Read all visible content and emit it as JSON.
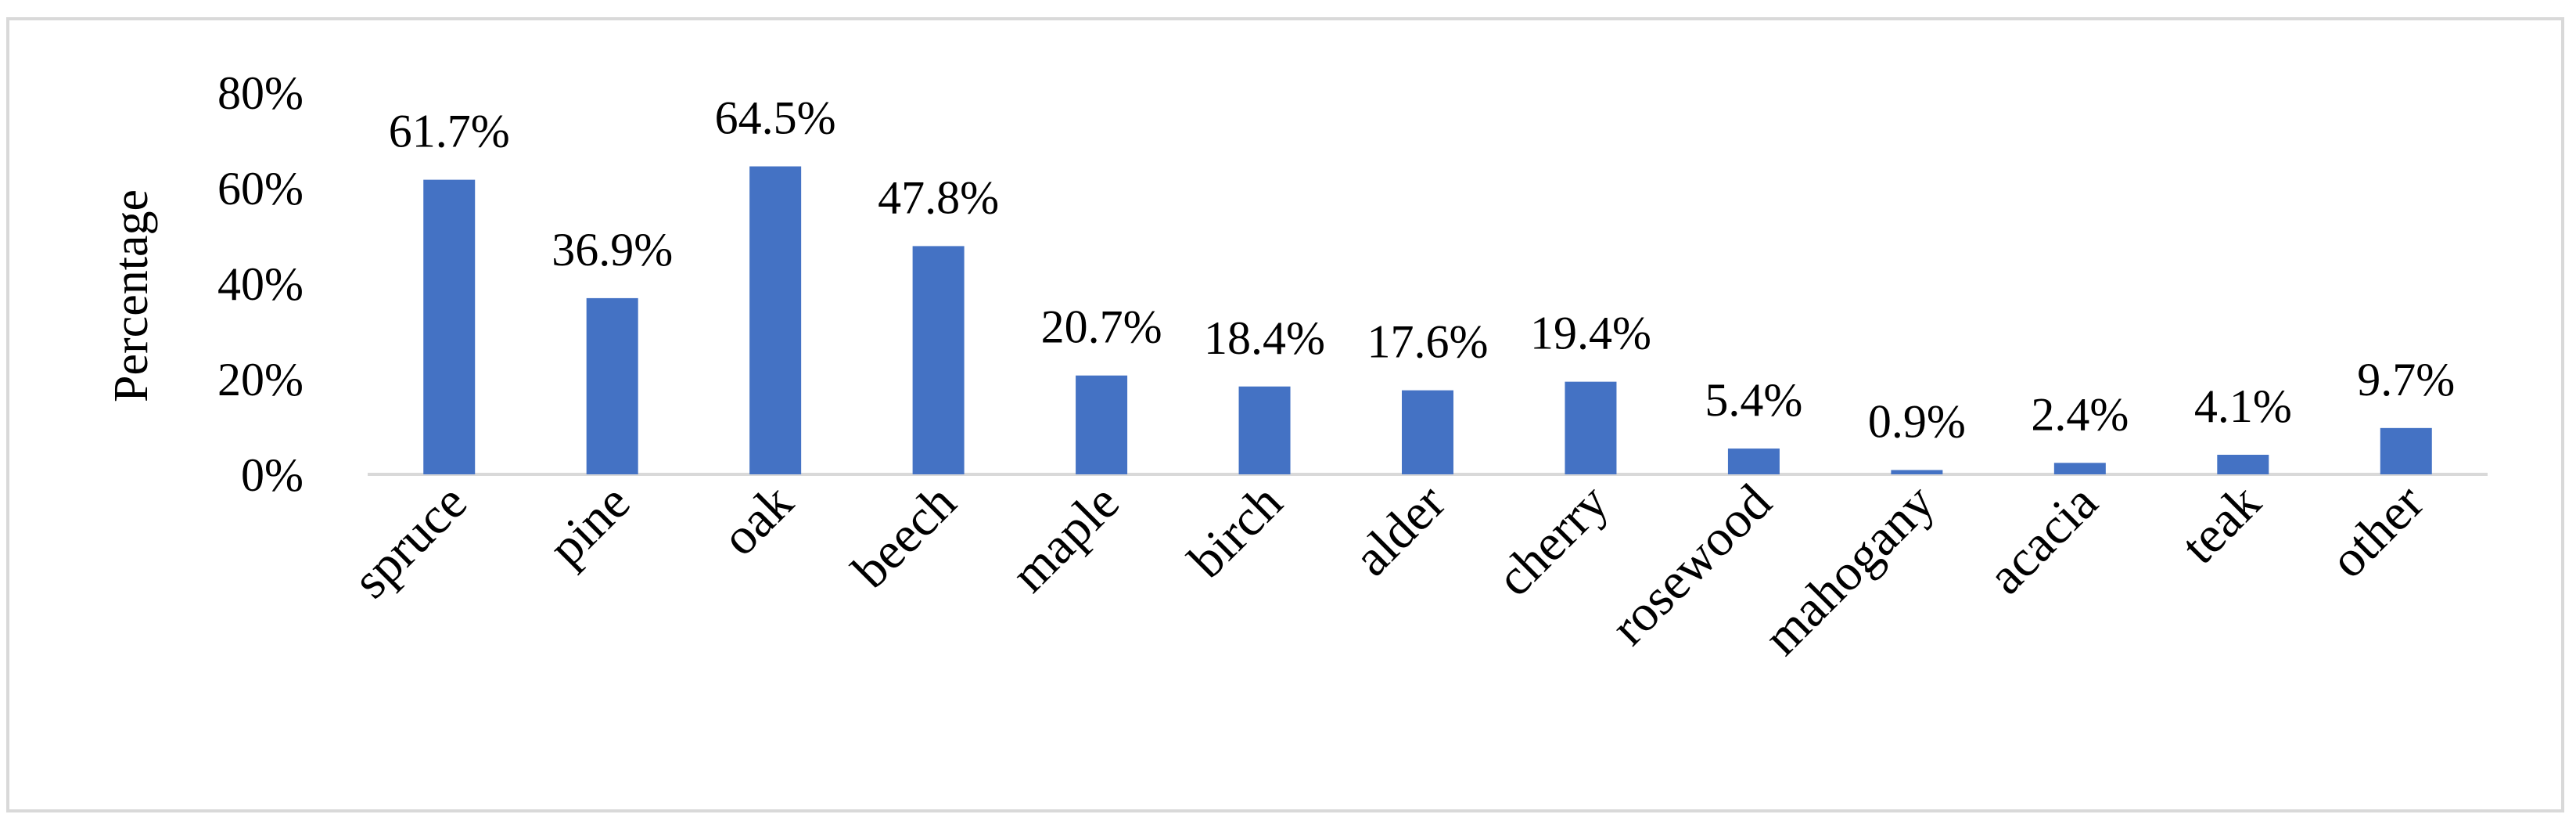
{
  "chart_data": {
    "type": "bar",
    "title": "",
    "xlabel": "",
    "ylabel": "Percentage",
    "ylim": [
      0,
      80
    ],
    "yticks": [
      "0%",
      "20%",
      "40%",
      "60%",
      "80%"
    ],
    "ytick_values": [
      0,
      20,
      40,
      60,
      80
    ],
    "grid": false,
    "legend": "none",
    "bar_color": "#4472c4",
    "categories": [
      "spruce",
      "pine",
      "oak",
      "beech",
      "maple",
      "birch",
      "alder",
      "cherry",
      "rosewood",
      "mahogany",
      "acacia",
      "teak",
      "other"
    ],
    "values": [
      61.7,
      36.9,
      64.5,
      47.8,
      20.7,
      18.4,
      17.6,
      19.4,
      5.4,
      0.9,
      2.4,
      4.1,
      9.7
    ],
    "data_labels": [
      "61.7%",
      "36.9%",
      "64.5%",
      "47.8%",
      "20.7%",
      "18.4%",
      "17.6%",
      "19.4%",
      "5.4%",
      "0.9%",
      "2.4%",
      "4.1%",
      "9.7%"
    ]
  }
}
